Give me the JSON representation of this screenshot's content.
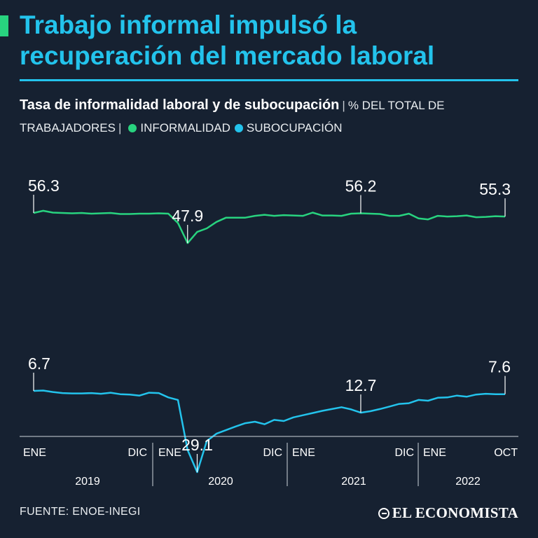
{
  "title": "Trabajo informal impulsó la recuperación del mercado laboral",
  "subtitle": {
    "bold": "Tasa de informalidad laboral y de subocupación",
    "unit": "% DEL TOTAL DE TRABAJADORES",
    "legend_informalidad": "INFORMALIDAD",
    "legend_subocupacion": "SUBOCUPACIÓN"
  },
  "colors": {
    "background": "#162131",
    "title": "#23c3ec",
    "informalidad": "#28d37f",
    "subocupacion": "#23c3ec"
  },
  "footer": {
    "source": "FUENTE: ENOE-INEGI",
    "brand": "EL ECONOMISTA"
  },
  "chart_data": {
    "type": "line",
    "title": "Tasa de informalidad laboral y de subocupación",
    "ylabel": "% del total de trabajadores",
    "x_start": "2019-01",
    "x_end": "2022-10",
    "series": [
      {
        "name": "INFORMALIDAD",
        "values": [
          56.3,
          56.9,
          56.4,
          56.3,
          56.2,
          56.3,
          56.1,
          56.2,
          56.3,
          56.0,
          56.0,
          56.1,
          56.1,
          56.2,
          56.1,
          53.5,
          47.9,
          51.0,
          52.0,
          53.8,
          55.0,
          55.0,
          55.0,
          55.5,
          55.8,
          55.5,
          55.7,
          55.6,
          55.5,
          56.4,
          55.6,
          55.6,
          55.5,
          56.1,
          56.2,
          56.1,
          56.0,
          55.5,
          55.5,
          56.1,
          54.8,
          54.5,
          55.5,
          55.3,
          55.4,
          55.6,
          55.1,
          55.2,
          55.4,
          55.3
        ],
        "callouts": [
          {
            "label": "56.3",
            "index": 0
          },
          {
            "label": "47.9",
            "index": 16
          },
          {
            "label": "56.2",
            "index": 34
          },
          {
            "label": "55.3",
            "index": 49
          }
        ]
      },
      {
        "name": "SUBOCUPACIÓN",
        "values": [
          6.7,
          6.6,
          7.0,
          7.3,
          7.4,
          7.4,
          7.3,
          7.5,
          7.2,
          7.6,
          7.7,
          8.0,
          7.2,
          7.3,
          8.5,
          9.2,
          23.0,
          29.1,
          20.5,
          18.5,
          17.5,
          16.5,
          15.6,
          15.2,
          15.9,
          14.7,
          15.0,
          14.0,
          13.4,
          12.8,
          12.2,
          11.7,
          11.2,
          11.8,
          12.7,
          12.3,
          11.7,
          11.0,
          10.3,
          10.1,
          9.2,
          9.4,
          8.6,
          8.5,
          8.0,
          8.3,
          7.7,
          7.5,
          7.6,
          7.6
        ],
        "callouts": [
          {
            "label": "6.7",
            "index": 0
          },
          {
            "label": "29.1",
            "index": 17
          },
          {
            "label": "12.7",
            "index": 34
          },
          {
            "label": "7.6",
            "index": 49
          }
        ]
      }
    ],
    "x_tick_labels": [
      "ENE",
      "DIC",
      "ENE",
      "DIC",
      "ENE",
      "DIC",
      "ENE",
      "OCT"
    ],
    "years": [
      "2019",
      "2020",
      "2021",
      "2022"
    ]
  }
}
